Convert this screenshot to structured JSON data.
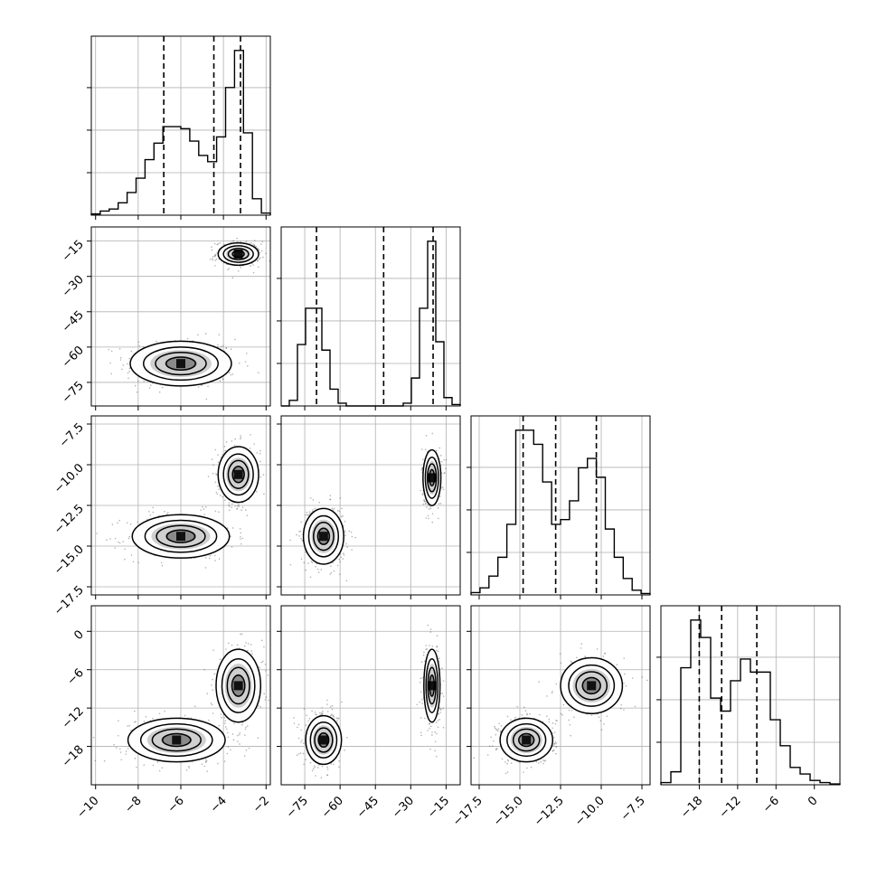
{
  "chart_data": {
    "type": "corner",
    "n_params": 4,
    "grid": true,
    "quantile_lines": "dashed",
    "params": [
      {
        "ylabel": "",
        "xlabel": "",
        "range": [
          -10.2,
          -1.8
        ],
        "ticks": [
          -10,
          -8,
          -6,
          -4,
          -2
        ],
        "tick_labels": [
          "−10",
          "−8",
          "−6",
          "−4",
          "−2"
        ],
        "quantiles": [
          -6.8,
          -4.45,
          -3.2
        ],
        "hist_values": [
          0.3,
          1.0,
          1.5,
          3.0,
          5.5,
          9.0,
          13.5,
          17.5,
          21.5,
          21.5,
          21.0,
          18.0,
          14.5,
          13.0,
          19.0,
          31.0,
          40.0,
          20.0,
          4.0,
          0.5
        ],
        "hist_max": 40
      },
      {
        "ylabel": "",
        "xlabel": "",
        "range": [
          -85,
          -9
        ],
        "ticks": [
          -75,
          -60,
          -45,
          -30,
          -15
        ],
        "tick_labels": [
          "−75",
          "−60",
          "−45",
          "−30",
          "−15"
        ],
        "quantiles": [
          -70.0,
          -41.5,
          -20.5
        ],
        "hist_values": [
          0.0,
          2.0,
          22.0,
          35.0,
          35.0,
          20.0,
          6.0,
          1.0,
          0.0,
          0.0,
          0.0,
          0.0,
          0.0,
          0.0,
          0.0,
          1.0,
          10.0,
          35.0,
          59.0,
          23.0,
          3.0,
          0.5
        ],
        "hist_max": 59
      },
      {
        "ylabel": "",
        "xlabel": "",
        "range": [
          -18.0,
          -7.0
        ],
        "ticks": [
          -17.5,
          -15.0,
          -12.5,
          -10.0,
          -7.5
        ],
        "tick_labels": [
          "−17.5",
          "−15.0",
          "−12.5",
          "−10.0",
          "−7.5"
        ],
        "quantiles": [
          -14.8,
          -12.8,
          -10.3
        ],
        "hist_values": [
          0.5,
          1.5,
          4.0,
          8.0,
          15.0,
          35.0,
          35.0,
          32.0,
          24.0,
          15.0,
          16.0,
          20.0,
          27.0,
          29.0,
          25.0,
          14.0,
          8.0,
          3.5,
          1.0,
          0.3
        ],
        "hist_max": 35
      },
      {
        "ylabel": "",
        "xlabel": "",
        "range": [
          -24,
          4
        ],
        "ticks": [
          -18,
          -12,
          -6,
          0
        ],
        "tick_labels": [
          "−18",
          "−12",
          "−6",
          "0"
        ],
        "quantiles": [
          -18.0,
          -14.5,
          -9.0
        ],
        "hist_values": [
          0.5,
          3.0,
          27.0,
          38.0,
          34.0,
          20.0,
          17.0,
          24.0,
          29.0,
          26.0,
          26.0,
          15.0,
          9.0,
          4.0,
          2.5,
          1.0,
          0.5,
          0.2
        ],
        "hist_max": 38
      }
    ],
    "hist2d": [
      {
        "row": 1,
        "col": 0,
        "modes": [
          {
            "cx": -6.0,
            "cy": -67.0,
            "sx": 1.25,
            "sy": 5.0,
            "w": 0.55
          },
          {
            "cx": -3.3,
            "cy": -20.5,
            "sx": 0.5,
            "sy": 2.5,
            "w": 0.45
          }
        ]
      },
      {
        "row": 2,
        "col": 0,
        "modes": [
          {
            "cx": -6.0,
            "cy": -14.4,
            "sx": 1.2,
            "sy": 0.7,
            "w": 0.55
          },
          {
            "cx": -3.3,
            "cy": -10.6,
            "sx": 0.5,
            "sy": 0.9,
            "w": 0.45
          }
        ]
      },
      {
        "row": 2,
        "col": 1,
        "modes": [
          {
            "cx": -67.0,
            "cy": -14.4,
            "sx": 4.5,
            "sy": 0.9,
            "w": 0.55
          },
          {
            "cx": -21.0,
            "cy": -10.8,
            "sx": 2.0,
            "sy": 0.9,
            "w": 0.45
          }
        ]
      },
      {
        "row": 3,
        "col": 0,
        "modes": [
          {
            "cx": -6.2,
            "cy": -17.0,
            "sx": 1.2,
            "sy": 1.8,
            "w": 0.55
          },
          {
            "cx": -3.3,
            "cy": -8.5,
            "sx": 0.55,
            "sy": 3.0,
            "w": 0.45
          }
        ]
      },
      {
        "row": 3,
        "col": 1,
        "modes": [
          {
            "cx": -67.0,
            "cy": -17.0,
            "sx": 4.0,
            "sy": 2.0,
            "w": 0.55
          },
          {
            "cx": -21.0,
            "cy": -8.5,
            "sx": 1.8,
            "sy": 3.0,
            "w": 0.45
          }
        ]
      },
      {
        "row": 3,
        "col": 2,
        "modes": [
          {
            "cx": -14.6,
            "cy": -17.0,
            "sx": 0.85,
            "sy": 1.8,
            "w": 0.55
          },
          {
            "cx": -10.6,
            "cy": -8.5,
            "sx": 1.0,
            "sy": 2.3,
            "w": 0.45
          }
        ]
      }
    ]
  }
}
